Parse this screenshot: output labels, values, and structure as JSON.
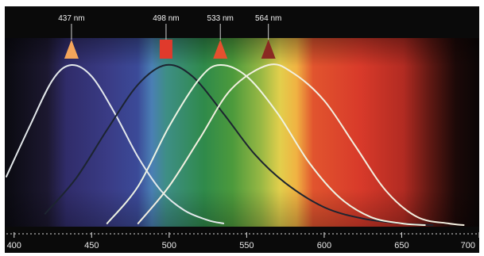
{
  "chart_data": {
    "type": "line",
    "title": "",
    "xlabel": "",
    "ylabel": "",
    "x_unit": "nm",
    "xlim": [
      395,
      700
    ],
    "ylim": [
      0,
      1
    ],
    "x_ticks": [
      400,
      450,
      500,
      550,
      600,
      650,
      700
    ],
    "grid": false,
    "legend": "none",
    "spectrum_background": true,
    "series": [
      {
        "peak_label": "437 nm",
        "peak": 437,
        "marker_color": "#f4a55a",
        "marker_shape": "triangle",
        "curve_color": "#e4e9ec",
        "x": [
          395,
          410,
          425,
          437,
          450,
          465,
          480,
          495,
          510,
          525,
          535
        ],
        "y": [
          0.31,
          0.62,
          0.91,
          1.0,
          0.93,
          0.7,
          0.43,
          0.22,
          0.1,
          0.04,
          0.02
        ]
      },
      {
        "peak_label": "498 nm",
        "peak": 498,
        "marker_color": "#e03a2c",
        "marker_shape": "square",
        "curve_color": "#1c2430",
        "x": [
          420,
          440,
          460,
          480,
          498,
          515,
          535,
          555,
          575,
          600,
          625,
          650,
          670
        ],
        "y": [
          0.08,
          0.3,
          0.6,
          0.88,
          1.0,
          0.93,
          0.7,
          0.45,
          0.27,
          0.12,
          0.05,
          0.02,
          0.01
        ]
      },
      {
        "peak_label": "533 nm",
        "peak": 533,
        "marker_color": "#e5502e",
        "marker_shape": "triangle",
        "curve_color": "#eef3e3",
        "x": [
          460,
          480,
          500,
          520,
          533,
          550,
          570,
          590,
          610,
          630,
          650,
          665
        ],
        "y": [
          0.02,
          0.25,
          0.62,
          0.92,
          1.0,
          0.93,
          0.7,
          0.4,
          0.18,
          0.06,
          0.02,
          0.01
        ]
      },
      {
        "peak_label": "564 nm",
        "peak": 564,
        "marker_color": "#8a2a22",
        "marker_shape": "triangle",
        "curve_color": "#f3efe0",
        "x": [
          480,
          500,
          520,
          540,
          564,
          580,
          600,
          620,
          640,
          660,
          680,
          690
        ],
        "y": [
          0.02,
          0.25,
          0.55,
          0.85,
          1.0,
          0.95,
          0.78,
          0.5,
          0.22,
          0.06,
          0.02,
          0.01
        ]
      }
    ]
  }
}
